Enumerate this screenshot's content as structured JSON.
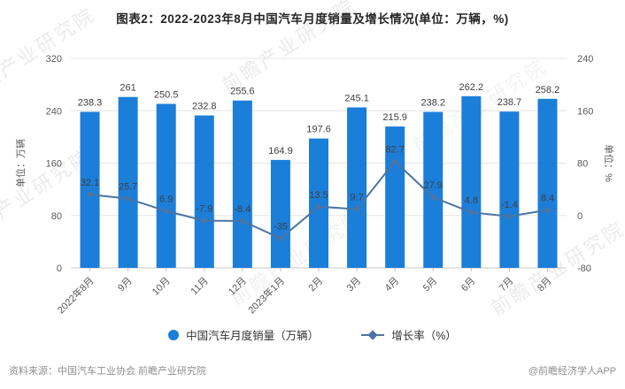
{
  "title": "图表2：2022-2023年8月中国汽车月度销量及增长情况(单位：万辆，%)",
  "chart_data": {
    "type": "combo",
    "categories": [
      "2022年8月",
      "9月",
      "10月",
      "11月",
      "12月",
      "2023年1月",
      "2月",
      "3月",
      "4月",
      "5月",
      "6月",
      "7月",
      "8月"
    ],
    "series": [
      {
        "name": "中国汽车月度销量（万辆）",
        "type": "bar",
        "axis": "left",
        "color": "#1b7ed9",
        "values": [
          238.3,
          261,
          250.5,
          232.8,
          255.6,
          164.9,
          197.6,
          245.1,
          215.9,
          238.2,
          262.2,
          238.7,
          258.2
        ]
      },
      {
        "name": "增长率（%）",
        "type": "line",
        "axis": "right",
        "color": "#4a74a4",
        "values": [
          32.1,
          25.7,
          6.9,
          -7.9,
          -8.4,
          -35,
          13.5,
          9.7,
          82.7,
          27.9,
          4.8,
          -1.4,
          8.4
        ]
      }
    ],
    "left_axis": {
      "label": "单位：万辆",
      "min": 0,
      "max": 320,
      "ticks": [
        0,
        80,
        160,
        240,
        320
      ]
    },
    "right_axis": {
      "label": "单位：%",
      "min": -80,
      "max": 240,
      "ticks": [
        -80,
        0,
        80,
        160,
        240
      ]
    },
    "legend_position": "bottom",
    "grid": true,
    "colors": {
      "grid": "#e6e6e6",
      "axis_line": "#c9c9c9",
      "tick_text": "#595959",
      "value_label": "#404040"
    }
  },
  "footer": {
    "source": "资料来源：中国汽车工业协会 前瞻产业研究院",
    "credit": "@前瞻经济学人APP"
  },
  "watermark": {
    "text": "前瞻产业研究院"
  }
}
